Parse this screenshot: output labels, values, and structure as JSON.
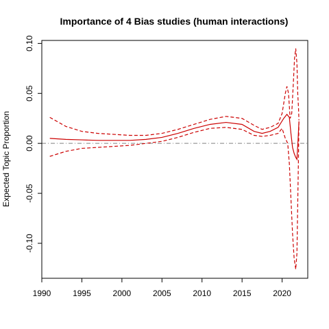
{
  "chart_data": {
    "type": "line",
    "title": "Importance of 4 Bias studies (human interactions)",
    "xlabel": "",
    "ylabel": "Expected Topic Proportion",
    "xlim": [
      1990.0,
      2023.2
    ],
    "ylim": [
      -0.135,
      0.103
    ],
    "x_ticks": [
      1990,
      1995,
      2000,
      2005,
      2010,
      2015,
      2020
    ],
    "y_ticks": [
      -0.1,
      -0.05,
      0.0,
      0.05,
      0.1
    ],
    "x_tick_labels": [
      "1990",
      "1995",
      "2000",
      "2005",
      "2010",
      "2015",
      "2020"
    ],
    "y_tick_labels": [
      "-0.10",
      "-0.05",
      "0.00",
      "0.05",
      "0.10"
    ],
    "reference_line": {
      "y": 0.0,
      "color": "#808080"
    },
    "series": [
      {
        "color": "#cc0000",
        "style": "solid",
        "x": [
          1991,
          1993,
          1995,
          1997,
          1999,
          2001,
          2003,
          2005,
          2007,
          2009,
          2011,
          2013,
          2015,
          2016.5,
          2017.5,
          2018.5,
          2019.5,
          2020.2,
          2020.6,
          2020.9,
          2021.1,
          2021.3,
          2021.5,
          2021.7,
          2021.85,
          2022.0,
          2022.1
        ],
        "y": [
          0.005,
          0.004,
          0.0035,
          0.003,
          0.003,
          0.003,
          0.004,
          0.006,
          0.01,
          0.015,
          0.019,
          0.021,
          0.019,
          0.012,
          0.01,
          0.012,
          0.016,
          0.025,
          0.029,
          0.026,
          0.01,
          -0.004,
          -0.01,
          -0.014,
          -0.016,
          0.005,
          0.022
        ]
      },
      {
        "color": "#cc0000",
        "style": "dashed",
        "x": [
          1991,
          1993,
          1995,
          1997,
          1999,
          2001,
          2003,
          2005,
          2007,
          2009,
          2011,
          2013,
          2015,
          2016.5,
          2017.5,
          2018.5,
          2019.5,
          2020.0,
          2020.4,
          2020.6,
          2020.8,
          2021.0,
          2021.2,
          2021.4,
          2021.55,
          2021.7,
          2021.85,
          2021.95,
          2022.05,
          2022.1
        ],
        "y": [
          0.026,
          0.017,
          0.012,
          0.01,
          0.009,
          0.008,
          0.008,
          0.01,
          0.014,
          0.019,
          0.024,
          0.027,
          0.025,
          0.018,
          0.014,
          0.016,
          0.02,
          0.03,
          0.05,
          0.057,
          0.05,
          0.025,
          0.03,
          0.06,
          0.085,
          0.095,
          0.08,
          0.05,
          0.035,
          0.023
        ]
      },
      {
        "color": "#cc0000",
        "style": "dashed",
        "x": [
          1991,
          1993,
          1995,
          1997,
          1999,
          2001,
          2003,
          2005,
          2007,
          2009,
          2011,
          2013,
          2015,
          2016.5,
          2017.5,
          2018.5,
          2019.5,
          2020.0,
          2020.4,
          2020.7,
          2020.9,
          2021.1,
          2021.3,
          2021.5,
          2021.7,
          2021.85,
          2021.95,
          2022.05,
          2022.1
        ],
        "y": [
          -0.013,
          -0.008,
          -0.005,
          -0.004,
          -0.003,
          -0.002,
          0.0,
          0.002,
          0.006,
          0.011,
          0.015,
          0.016,
          0.014,
          0.008,
          0.007,
          0.008,
          0.01,
          0.015,
          0.005,
          0.0,
          -0.02,
          -0.055,
          -0.09,
          -0.115,
          -0.126,
          -0.11,
          -0.06,
          -0.01,
          0.022
        ]
      }
    ]
  }
}
